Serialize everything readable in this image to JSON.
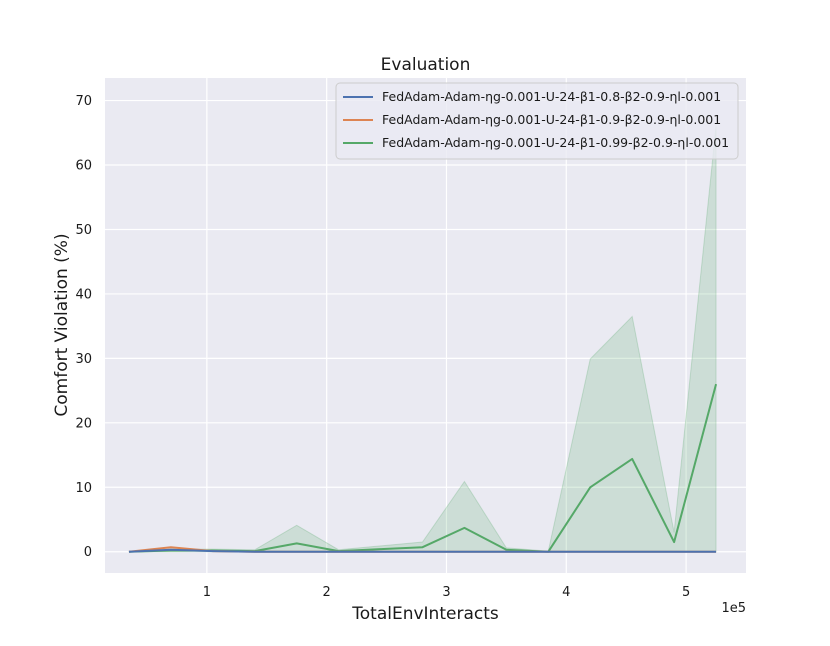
{
  "chart_data": {
    "type": "line",
    "title": "Evaluation",
    "xlabel": "TotalEnvInteracts",
    "ylabel": "Comfort Violation (%)",
    "x_offset_label": "1e5",
    "xlim": [
      0.15,
      5.5
    ],
    "ylim": [
      -3.3,
      73.5
    ],
    "x_ticks": [
      1,
      2,
      3,
      4,
      5
    ],
    "y_ticks": [
      0,
      10,
      20,
      30,
      40,
      50,
      60,
      70
    ],
    "grid": true,
    "legend_position": "top-right",
    "x": [
      0.35,
      0.7,
      1.05,
      1.4,
      1.75,
      2.1,
      2.45,
      2.8,
      3.15,
      3.5,
      3.85,
      4.2,
      4.55,
      4.9,
      5.25
    ],
    "series": [
      {
        "name": "FedAdam-Adam-ηg-0.001-U-24-β1-0.8-β2-0.9-ηl-0.001",
        "color": "#4c72b0",
        "values": [
          0,
          0.3,
          0.1,
          0,
          0,
          0,
          0,
          0,
          0,
          0,
          0,
          0,
          0,
          0,
          0
        ]
      },
      {
        "name": "FedAdam-Adam-ηg-0.001-U-24-β1-0.9-β2-0.9-ηl-0.001",
        "color": "#dd8452",
        "values": [
          0,
          0.7,
          0.1,
          0,
          0,
          0,
          0,
          0,
          0,
          0,
          0,
          0,
          0,
          0,
          0
        ]
      },
      {
        "name": "FedAdam-Adam-ηg-0.001-U-24-β1-0.99-β2-0.9-ηl-0.001",
        "color": "#55a868",
        "values": [
          0,
          0.2,
          0.2,
          0.1,
          1.3,
          0.1,
          0.4,
          0.7,
          3.7,
          0.3,
          0,
          10,
          14.4,
          1.5,
          26
        ],
        "band_lower": [
          0,
          0,
          0,
          0,
          0,
          0,
          0,
          0,
          0,
          0,
          0,
          0,
          0,
          0,
          0
        ],
        "band_upper": [
          0,
          0.4,
          0.4,
          0.3,
          4.1,
          0.3,
          0.9,
          1.5,
          10.9,
          0.6,
          0.1,
          29.9,
          36.5,
          3,
          66
        ]
      }
    ]
  }
}
